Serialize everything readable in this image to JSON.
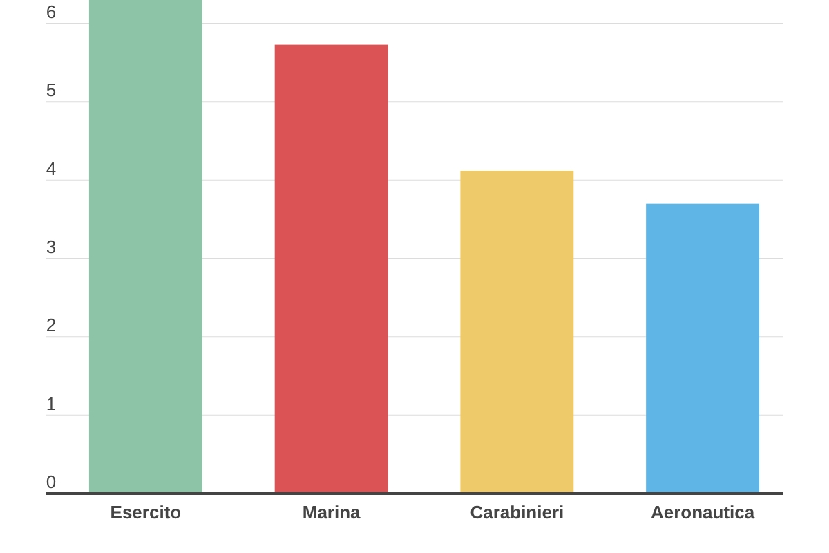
{
  "chart_data": {
    "type": "bar",
    "categories": [
      "Esercito",
      "Marina",
      "Carabinieri",
      "Aeronautica"
    ],
    "values": [
      6.3,
      5.73,
      4.12,
      3.7
    ],
    "colors": [
      "#8dc3a7",
      "#dc5355",
      "#efca6b",
      "#5fb5e5"
    ],
    "ylim": [
      0,
      6.3
    ],
    "yticks": [
      0,
      1,
      2,
      3,
      4,
      5,
      6
    ],
    "grid": "y"
  }
}
